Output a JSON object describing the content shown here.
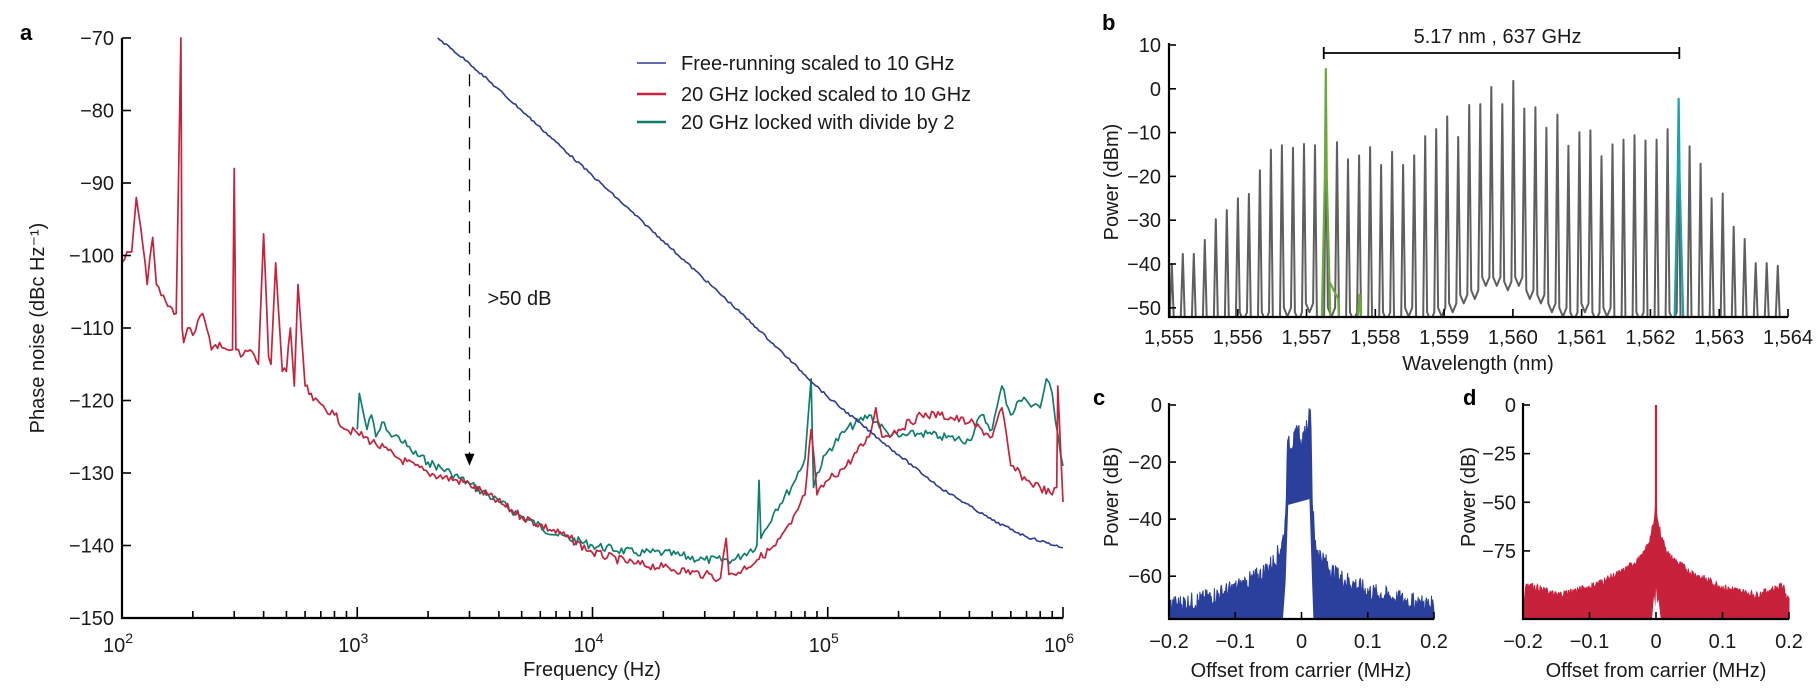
{
  "colors": {
    "free_running": "#2e3a98",
    "locked_scaled": "#c8213b",
    "locked_divide": "#0e7f6c",
    "comb": "#5f5f5f",
    "comb_left_highlight": "#6aaa3c",
    "comb_right_highlight": "#18a3a8",
    "spectrum_c": "#2b3f9c",
    "spectrum_d": "#c8213b"
  },
  "chart_data": [
    {
      "panel": "a",
      "type": "line",
      "xscale": "log",
      "xlabel": "Frequency (Hz)",
      "ylabel": "Phase noise (dBc Hz⁻¹)",
      "xlim": [
        100,
        1000000
      ],
      "ylim": [
        -150,
        -70
      ],
      "xticks": [
        {
          "label_base": "10",
          "label_exp": "2",
          "value": 100
        },
        {
          "label_base": "10",
          "label_exp": "3",
          "value": 1000
        },
        {
          "label_base": "10",
          "label_exp": "4",
          "value": 10000
        },
        {
          "label_base": "10",
          "label_exp": "5",
          "value": 100000
        },
        {
          "label_base": "10",
          "label_exp": "6",
          "value": 1000000
        }
      ],
      "yticks": [
        "-70",
        "-80",
        "-90",
        "-100",
        "-110",
        "-120",
        "-130",
        "-140",
        "-150"
      ],
      "ytick_values": [
        -70,
        -80,
        -90,
        -100,
        -110,
        -120,
        -130,
        -140,
        -150
      ],
      "legend": {
        "placement": "top-right",
        "entries": [
          {
            "label": "Free-running scaled to 10 GHz",
            "series": "free_running"
          },
          {
            "label": "20 GHz locked scaled to 10 GHz",
            "series": "locked_scaled"
          },
          {
            "label": "20 GHz locked with divide by 2",
            "series": "locked_divide"
          }
        ]
      },
      "annotation": {
        "text": ">50 dB",
        "x": 3000,
        "y_from": -75,
        "y_to": -129
      },
      "series": [
        {
          "name": "free_running",
          "label": "Free-running scaled to 10 GHz",
          "x": [
            2200,
            3000,
            5000,
            10000,
            20000,
            50000,
            100000,
            200000,
            300000,
            500000,
            700000,
            1000000
          ],
          "y": [
            -70,
            -73.5,
            -80,
            -89,
            -98,
            -110,
            -119.5,
            -127.5,
            -132,
            -136.5,
            -138.8,
            -140.3
          ]
        },
        {
          "name": "locked_scaled",
          "label": "20 GHz locked scaled to 10 GHz",
          "x": [
            100,
            105,
            110,
            115,
            120,
            128,
            135,
            140,
            150,
            160,
            170,
            178,
            180,
            183,
            190,
            200,
            210,
            220,
            240,
            260,
            280,
            295,
            300,
            305,
            320,
            350,
            380,
            400,
            420,
            430,
            450,
            480,
            500,
            520,
            540,
            560,
            600,
            650,
            700,
            800,
            900,
            1000,
            1200,
            1500,
            2000,
            3000,
            5000,
            8000,
            10000,
            15000,
            20000,
            30000,
            35000,
            37000,
            38000,
            40000,
            50000,
            60000,
            70000,
            80000,
            85000,
            90000,
            100000,
            120000,
            150000,
            160000,
            170000,
            200000,
            250000,
            300000,
            400000,
            500000,
            550000,
            600000,
            700000,
            800000,
            900000,
            940000,
            950000,
            1000000
          ],
          "y": [
            -101,
            -99.5,
            -99.5,
            -92,
            -96,
            -104,
            -97.5,
            -104,
            -105.5,
            -107,
            -108,
            -70,
            -110,
            -112,
            -110,
            -111,
            -109,
            -108,
            -113,
            -112,
            -113,
            -113,
            -88,
            -113,
            -114,
            -113,
            -115,
            -97,
            -114,
            -115,
            -101,
            -116,
            -116,
            -110,
            -118,
            -104,
            -118,
            -120,
            -120.5,
            -122,
            -124,
            -124.5,
            -126,
            -128,
            -130,
            -131.5,
            -136,
            -139,
            -141,
            -142.5,
            -143,
            -144,
            -144.5,
            -139,
            -144,
            -144,
            -142,
            -140,
            -137,
            -133,
            -124,
            -133,
            -131,
            -129,
            -125,
            -121,
            -125,
            -124,
            -122,
            -122,
            -123,
            -125,
            -121,
            -129,
            -131,
            -132,
            -133,
            -132,
            -118,
            -134
          ]
        },
        {
          "name": "locked_divide",
          "label": "20 GHz locked with divide by 2",
          "x": [
            1000,
            1020,
            1100,
            1150,
            1200,
            1300,
            1400,
            1500,
            1700,
            2000,
            2500,
            3000,
            4000,
            5000,
            7000,
            10000,
            15000,
            20000,
            30000,
            40000,
            50000,
            51000,
            52000,
            60000,
            70000,
            80000,
            85000,
            87000,
            90000,
            100000,
            120000,
            150000,
            180000,
            200000,
            250000,
            300000,
            400000,
            450000,
            500000,
            550000,
            600000,
            650000,
            700000,
            800000,
            850000,
            900000,
            930000,
            1000000
          ],
          "y": [
            -124,
            -119,
            -124,
            -122,
            -125,
            -123,
            -125,
            -125,
            -127,
            -128.5,
            -130,
            -131.5,
            -134,
            -136,
            -138.5,
            -140,
            -141,
            -141,
            -142,
            -142,
            -140,
            -131,
            -139,
            -135,
            -132,
            -128,
            -117,
            -132,
            -130,
            -127,
            -124,
            -122,
            -124.5,
            -125,
            -124.5,
            -125,
            -125.5,
            -122,
            -124,
            -118,
            -122,
            -120,
            -120,
            -121,
            -117,
            -119,
            -123,
            -129
          ]
        }
      ]
    },
    {
      "panel": "b",
      "type": "line",
      "xlabel": "Wavelength (nm)",
      "ylabel": "Power (dBm)",
      "xlim": [
        1555,
        1564
      ],
      "ylim": [
        -52,
        10
      ],
      "xticks": [
        "1,555",
        "1,556",
        "1,557",
        "1,558",
        "1,559",
        "1,560",
        "1,561",
        "1,562",
        "1,563",
        "1,564"
      ],
      "xtick_values": [
        1555,
        1556,
        1557,
        1558,
        1559,
        1560,
        1561,
        1562,
        1563,
        1564
      ],
      "yticks": [
        "10",
        "0",
        "−10",
        "−20",
        "−30",
        "−40",
        "−50"
      ],
      "ytick_values": [
        10,
        0,
        -10,
        -20,
        -30,
        -40,
        -50
      ],
      "annotation": {
        "text": "5.17 nm , 637 GHz",
        "x_from": 1557.25,
        "x_to": 1562.42
      },
      "comb": {
        "first_line_nm": 1555.04,
        "spacing_nm": 0.1602,
        "floor_dbm": -52,
        "peak_dbm": [
          -40,
          -37.7,
          -37.7,
          -34.5,
          -29.8,
          -27.7,
          -25,
          -24,
          -18.6,
          -13.9,
          -12.9,
          -13.5,
          -12.6,
          -12.9,
          -9,
          -12.2,
          -16.1,
          -15.2,
          -13.3,
          -17.4,
          -14.4,
          -17.4,
          -15.2,
          -10.8,
          -9.2,
          -6.3,
          -11,
          -3.7,
          -3.5,
          0.4,
          -3.5,
          1.8,
          -4.5,
          -4.2,
          -8.9,
          -5.9,
          -13,
          -9.9,
          -9.5,
          -15.4,
          -12.7,
          -11.6,
          -10.6,
          -11.8,
          -11.6,
          -9.2,
          -12,
          -13.1,
          -17.1,
          -25,
          -23.9,
          -31.5,
          -34.3,
          -39.8,
          -39.8,
          -40.4
        ],
        "trough_dbm": [
          -52,
          -52,
          -52,
          -52,
          -52,
          -52,
          -51,
          -52,
          -51,
          -52,
          -50,
          -51,
          -49,
          -52,
          -50,
          -52,
          -51,
          -52,
          -52,
          -51,
          -52,
          -50,
          -52,
          -51,
          -50,
          -49,
          -47,
          -46,
          -43,
          -43,
          -44,
          -43,
          -46,
          -47,
          -49,
          -50,
          -51,
          -49,
          -51,
          -50,
          -52,
          -52,
          -51,
          -52,
          -52,
          -51,
          -52,
          -52,
          -52,
          -52,
          -52,
          -52,
          -52,
          -52,
          -52,
          -52
        ]
      },
      "highlight_lines": [
        {
          "name": "left",
          "nm": 1557.28,
          "peak_dbm": 4.5
        },
        {
          "name": "right",
          "nm": 1562.41,
          "peak_dbm": -2.3
        }
      ]
    },
    {
      "panel": "c",
      "type": "area",
      "xlabel": "Offset from carrier (MHz)",
      "ylabel": "Power (dB)",
      "xlim": [
        -0.2,
        0.2
      ],
      "ylim": [
        -75,
        0
      ],
      "xticks": [
        "−0.2",
        "−0.1",
        "0",
        "0.1",
        "0.2"
      ],
      "xtick_values": [
        -0.2,
        -0.1,
        0,
        0.1,
        0.2
      ],
      "yticks": [
        "0",
        "−20",
        "−40",
        "−60"
      ],
      "ytick_values": [
        0,
        -20,
        -40,
        -60
      ],
      "envelope": {
        "x": [
          -0.2,
          -0.15,
          -0.1,
          -0.06,
          -0.04,
          -0.03,
          -0.025,
          -0.02,
          -0.018,
          -0.01,
          -0.005,
          0,
          0.005,
          0.01,
          0.014,
          0.016,
          0.02,
          0.03,
          0.05,
          0.1,
          0.15,
          0.2
        ],
        "y": [
          -69,
          -67,
          -63,
          -58,
          -53,
          -48,
          -42,
          -8,
          -12,
          -11,
          -6,
          -14,
          -8,
          -4,
          0,
          -30,
          -47,
          -52,
          -58,
          -64,
          -67,
          -69
        ]
      },
      "gap": {
        "x_from": -0.028,
        "x_to": 0.018,
        "y_top": -35
      }
    },
    {
      "panel": "d",
      "type": "area",
      "xlabel": "Offset from carrier (MHz)",
      "ylabel": "Power (dB)",
      "xlim": [
        -0.2,
        0.2
      ],
      "ylim": [
        -110,
        0
      ],
      "xticks": [
        "−0.2",
        "−0.1",
        "0",
        "0.1",
        "0.2"
      ],
      "xtick_values": [
        -0.2,
        -0.1,
        0,
        0.1,
        0.2
      ],
      "yticks": [
        "0",
        "−25",
        "−50",
        "−75"
      ],
      "ytick_values": [
        0,
        -25,
        -50,
        -75
      ],
      "envelope": {
        "x": [
          -0.2,
          -0.197,
          -0.196,
          -0.15,
          -0.1,
          -0.05,
          -0.02,
          -0.01,
          -0.003,
          -0.001,
          0,
          0.001,
          0.003,
          0.01,
          0.02,
          0.05,
          0.1,
          0.15,
          0.193,
          0.194,
          0.197,
          0.2
        ],
        "y": [
          -98,
          -98,
          -91,
          -97,
          -93,
          -85,
          -77,
          -69,
          -60,
          -55,
          0,
          -55,
          -60,
          -69,
          -77,
          -85,
          -93,
          -97,
          -92,
          -98,
          -98,
          -98
        ]
      }
    }
  ],
  "panels": {
    "a": {
      "label": "a"
    },
    "b": {
      "label": "b"
    },
    "c": {
      "label": "c"
    },
    "d": {
      "label": "d"
    }
  }
}
